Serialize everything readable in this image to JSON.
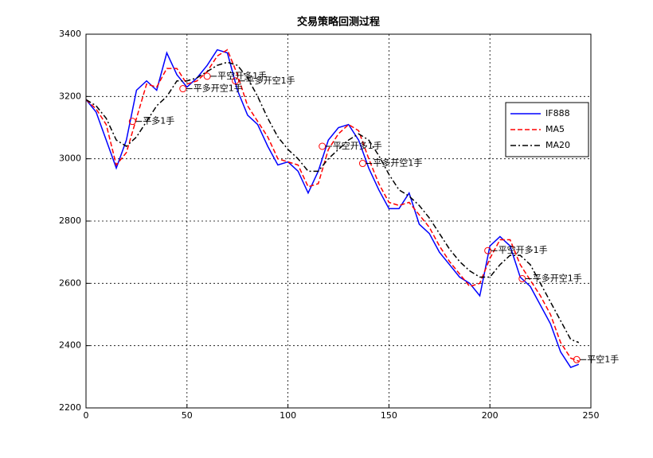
{
  "chart_data": {
    "type": "line",
    "title": "交易策略回测过程",
    "x": [
      0,
      5,
      10,
      15,
      20,
      25,
      30,
      35,
      40,
      45,
      50,
      55,
      60,
      65,
      70,
      75,
      80,
      85,
      90,
      95,
      100,
      105,
      110,
      115,
      120,
      125,
      130,
      135,
      140,
      145,
      150,
      155,
      160,
      165,
      170,
      175,
      180,
      185,
      190,
      195,
      200,
      205,
      210,
      215,
      220,
      225,
      230,
      235,
      240,
      244
    ],
    "series": [
      {
        "name": "IF888",
        "color": "#0000ff",
        "dash": "solid",
        "values": [
          3190,
          3150,
          3060,
          2970,
          3060,
          3220,
          3250,
          3220,
          3340,
          3270,
          3230,
          3260,
          3300,
          3350,
          3340,
          3220,
          3140,
          3110,
          3040,
          2980,
          2990,
          2960,
          2890,
          2960,
          3060,
          3100,
          3110,
          3060,
          2970,
          2900,
          2840,
          2840,
          2890,
          2790,
          2760,
          2700,
          2660,
          2620,
          2600,
          2560,
          2720,
          2750,
          2720,
          2620,
          2590,
          2530,
          2470,
          2380,
          2330,
          2340
        ]
      },
      {
        "name": "MA5",
        "color": "#ff0000",
        "dash": "dashed",
        "values": [
          3190,
          3160,
          3110,
          2980,
          3020,
          3130,
          3240,
          3230,
          3290,
          3290,
          3240,
          3250,
          3280,
          3330,
          3350,
          3270,
          3170,
          3120,
          3070,
          3000,
          2990,
          2980,
          2910,
          2920,
          3030,
          3080,
          3110,
          3090,
          3000,
          2920,
          2860,
          2850,
          2860,
          2820,
          2780,
          2720,
          2670,
          2630,
          2590,
          2600,
          2680,
          2740,
          2740,
          2660,
          2610,
          2560,
          2500,
          2410,
          2360,
          2350
        ]
      },
      {
        "name": "MA20",
        "color": "#000000",
        "dash": "dashdot",
        "values": [
          3190,
          3170,
          3130,
          3060,
          3040,
          3070,
          3120,
          3170,
          3200,
          3250,
          3250,
          3260,
          3280,
          3300,
          3310,
          3300,
          3260,
          3200,
          3130,
          3070,
          3030,
          3000,
          2960,
          2960,
          3000,
          3030,
          3060,
          3080,
          3060,
          3010,
          2950,
          2900,
          2880,
          2850,
          2810,
          2760,
          2710,
          2670,
          2640,
          2620,
          2620,
          2660,
          2690,
          2690,
          2660,
          2600,
          2540,
          2480,
          2420,
          2410
        ]
      }
    ],
    "annotations": [
      {
        "x": 23,
        "y": 3120,
        "text": "平多1手"
      },
      {
        "x": 48,
        "y": 3225,
        "text": "平多开空1手"
      },
      {
        "x": 60,
        "y": 3265,
        "text": "平空开多1手"
      },
      {
        "x": 74,
        "y": 3250,
        "text": "平多开空1手"
      },
      {
        "x": 117,
        "y": 3040,
        "text": "平空开多1手"
      },
      {
        "x": 137,
        "y": 2985,
        "text": "平多开空1手"
      },
      {
        "x": 199,
        "y": 2705,
        "text": "平空开多1手"
      },
      {
        "x": 216,
        "y": 2615,
        "text": "平多开空1手"
      },
      {
        "x": 243,
        "y": 2355,
        "text": "平空1手"
      }
    ],
    "annotation_color": "#ff0000",
    "xlim": [
      0,
      250
    ],
    "xticks": [
      0,
      50,
      100,
      150,
      200,
      250
    ],
    "ylim": [
      2200,
      3400
    ],
    "yticks": [
      2200,
      2400,
      2600,
      2800,
      3000,
      3200,
      3400
    ],
    "grid": true,
    "legend": "upper right"
  }
}
